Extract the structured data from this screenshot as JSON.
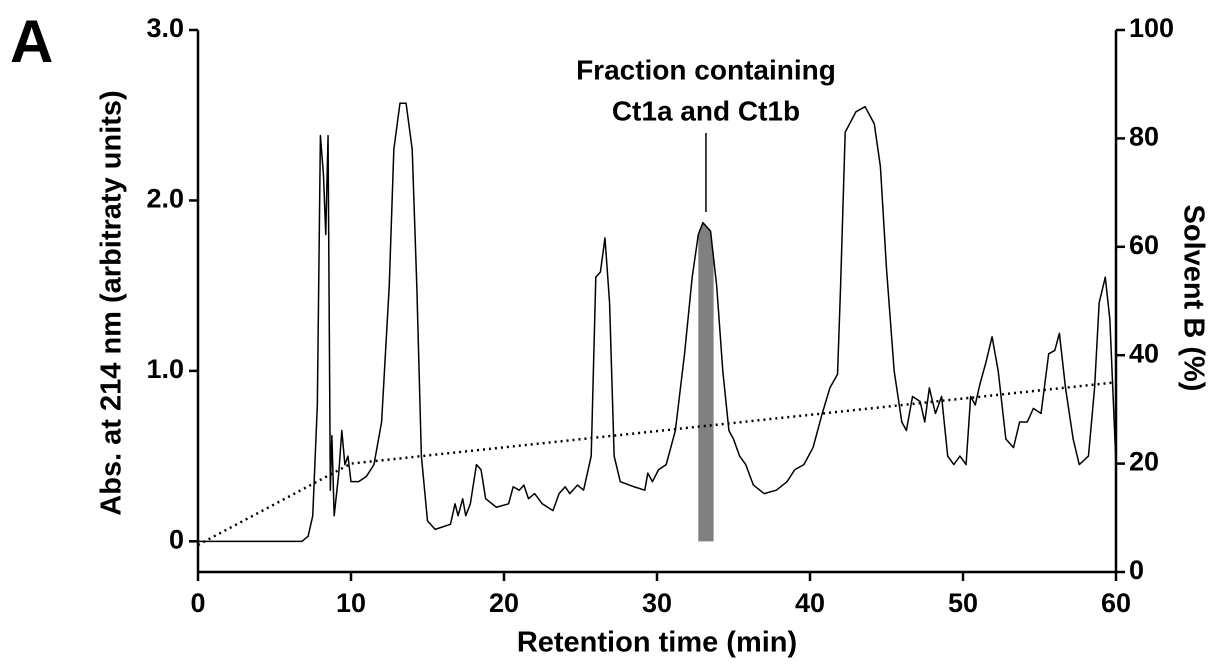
{
  "chart_data": {
    "type": "line",
    "panel_label": "A",
    "annotation": [
      "Fraction containing",
      "Ct1a and Ct1b"
    ],
    "xlabel": "Retention time (min)",
    "ylabel": "Abs. at 214 nm (arbitraty units)",
    "y2label": "Solvent B (%)",
    "xlim": [
      0,
      60
    ],
    "xticks": [
      0,
      10,
      20,
      30,
      40,
      50,
      60
    ],
    "ylim": [
      -0.18,
      3.0
    ],
    "yticks": [
      0,
      {
        "value": 1,
        "label": "1.0"
      },
      {
        "value": 2,
        "label": "2.0"
      },
      {
        "value": 3,
        "label": "3.0"
      }
    ],
    "y2lim": [
      0,
      100
    ],
    "y2ticks": [
      0,
      20,
      40,
      60,
      80,
      100
    ],
    "highlight_x": [
      32.7,
      33.7
    ],
    "highlight_color": "#808080",
    "series": [
      {
        "color": "#000000",
        "dash": "solid",
        "x": [
          0,
          6.8,
          7.2,
          7.5,
          7.8,
          8.0,
          8.2,
          8.35,
          8.5,
          8.65,
          8.75,
          8.9,
          9.2,
          9.4,
          9.6,
          9.8,
          10.0,
          10.5,
          11.0,
          11.5,
          12.0,
          12.5,
          12.8,
          13.2,
          13.6,
          14.0,
          14.3,
          14.6,
          15.0,
          15.5,
          16.5,
          16.8,
          17.0,
          17.3,
          17.5,
          17.8,
          18.2,
          18.5,
          18.8,
          19.5,
          20.3,
          20.6,
          21.0,
          21.3,
          21.6,
          22.0,
          22.5,
          23.2,
          23.6,
          24.0,
          24.3,
          24.8,
          25.2,
          25.7,
          26.0,
          26.3,
          26.6,
          26.9,
          27.2,
          27.6,
          28.5,
          29.2,
          29.4,
          29.7,
          30.1,
          30.6,
          31.2,
          31.8,
          32.3,
          32.7,
          33.0,
          33.5,
          33.9,
          34.3,
          34.7,
          35.0,
          35.4,
          35.8,
          36.3,
          37.0,
          37.8,
          38.5,
          39.0,
          39.6,
          40.2,
          40.8,
          41.3,
          41.8,
          42.0,
          42.3,
          43.0,
          43.6,
          44.2,
          44.6,
          45.0,
          45.5,
          46.0,
          46.3,
          46.7,
          47.2,
          47.5,
          47.8,
          48.2,
          48.6,
          49.0,
          49.4,
          49.8,
          50.2,
          50.5,
          50.8,
          51.1,
          51.5,
          51.9,
          52.3,
          52.8,
          53.3,
          53.7,
          54.2,
          54.6,
          55.1,
          55.6,
          56.0,
          56.3,
          56.7,
          57.2,
          57.6,
          58.2,
          58.6,
          58.9,
          59.3,
          59.6,
          60.0
        ],
        "values": [
          0,
          0,
          0.03,
          0.15,
          0.8,
          2.38,
          2.15,
          1.8,
          2.38,
          0.3,
          0.62,
          0.15,
          0.4,
          0.65,
          0.45,
          0.5,
          0.35,
          0.35,
          0.38,
          0.45,
          0.7,
          1.5,
          2.3,
          2.57,
          2.57,
          2.3,
          1.5,
          0.5,
          0.12,
          0.07,
          0.1,
          0.22,
          0.15,
          0.25,
          0.15,
          0.22,
          0.45,
          0.42,
          0.25,
          0.2,
          0.22,
          0.32,
          0.3,
          0.33,
          0.25,
          0.28,
          0.22,
          0.18,
          0.28,
          0.32,
          0.28,
          0.33,
          0.3,
          0.5,
          1.55,
          1.58,
          1.78,
          1.4,
          0.5,
          0.35,
          0.32,
          0.3,
          0.4,
          0.35,
          0.42,
          0.45,
          0.65,
          1.1,
          1.55,
          1.8,
          1.87,
          1.82,
          1.5,
          1.0,
          0.65,
          0.6,
          0.5,
          0.45,
          0.33,
          0.28,
          0.3,
          0.35,
          0.42,
          0.45,
          0.55,
          0.75,
          0.9,
          0.98,
          1.5,
          2.4,
          2.52,
          2.55,
          2.45,
          2.2,
          1.6,
          1.0,
          0.7,
          0.65,
          0.85,
          0.82,
          0.7,
          0.9,
          0.75,
          0.85,
          0.5,
          0.45,
          0.5,
          0.45,
          0.85,
          0.8,
          0.92,
          1.05,
          1.2,
          1.0,
          0.6,
          0.55,
          0.7,
          0.7,
          0.78,
          0.75,
          1.1,
          1.12,
          1.22,
          0.9,
          0.6,
          0.45,
          0.5,
          0.9,
          1.4,
          1.55,
          1.3,
          0.45
        ]
      },
      {
        "color": "#000000",
        "dash": "dotted",
        "axis": "y2",
        "x": [
          0,
          10,
          60
        ],
        "values": [
          5,
          20,
          35
        ]
      }
    ]
  }
}
